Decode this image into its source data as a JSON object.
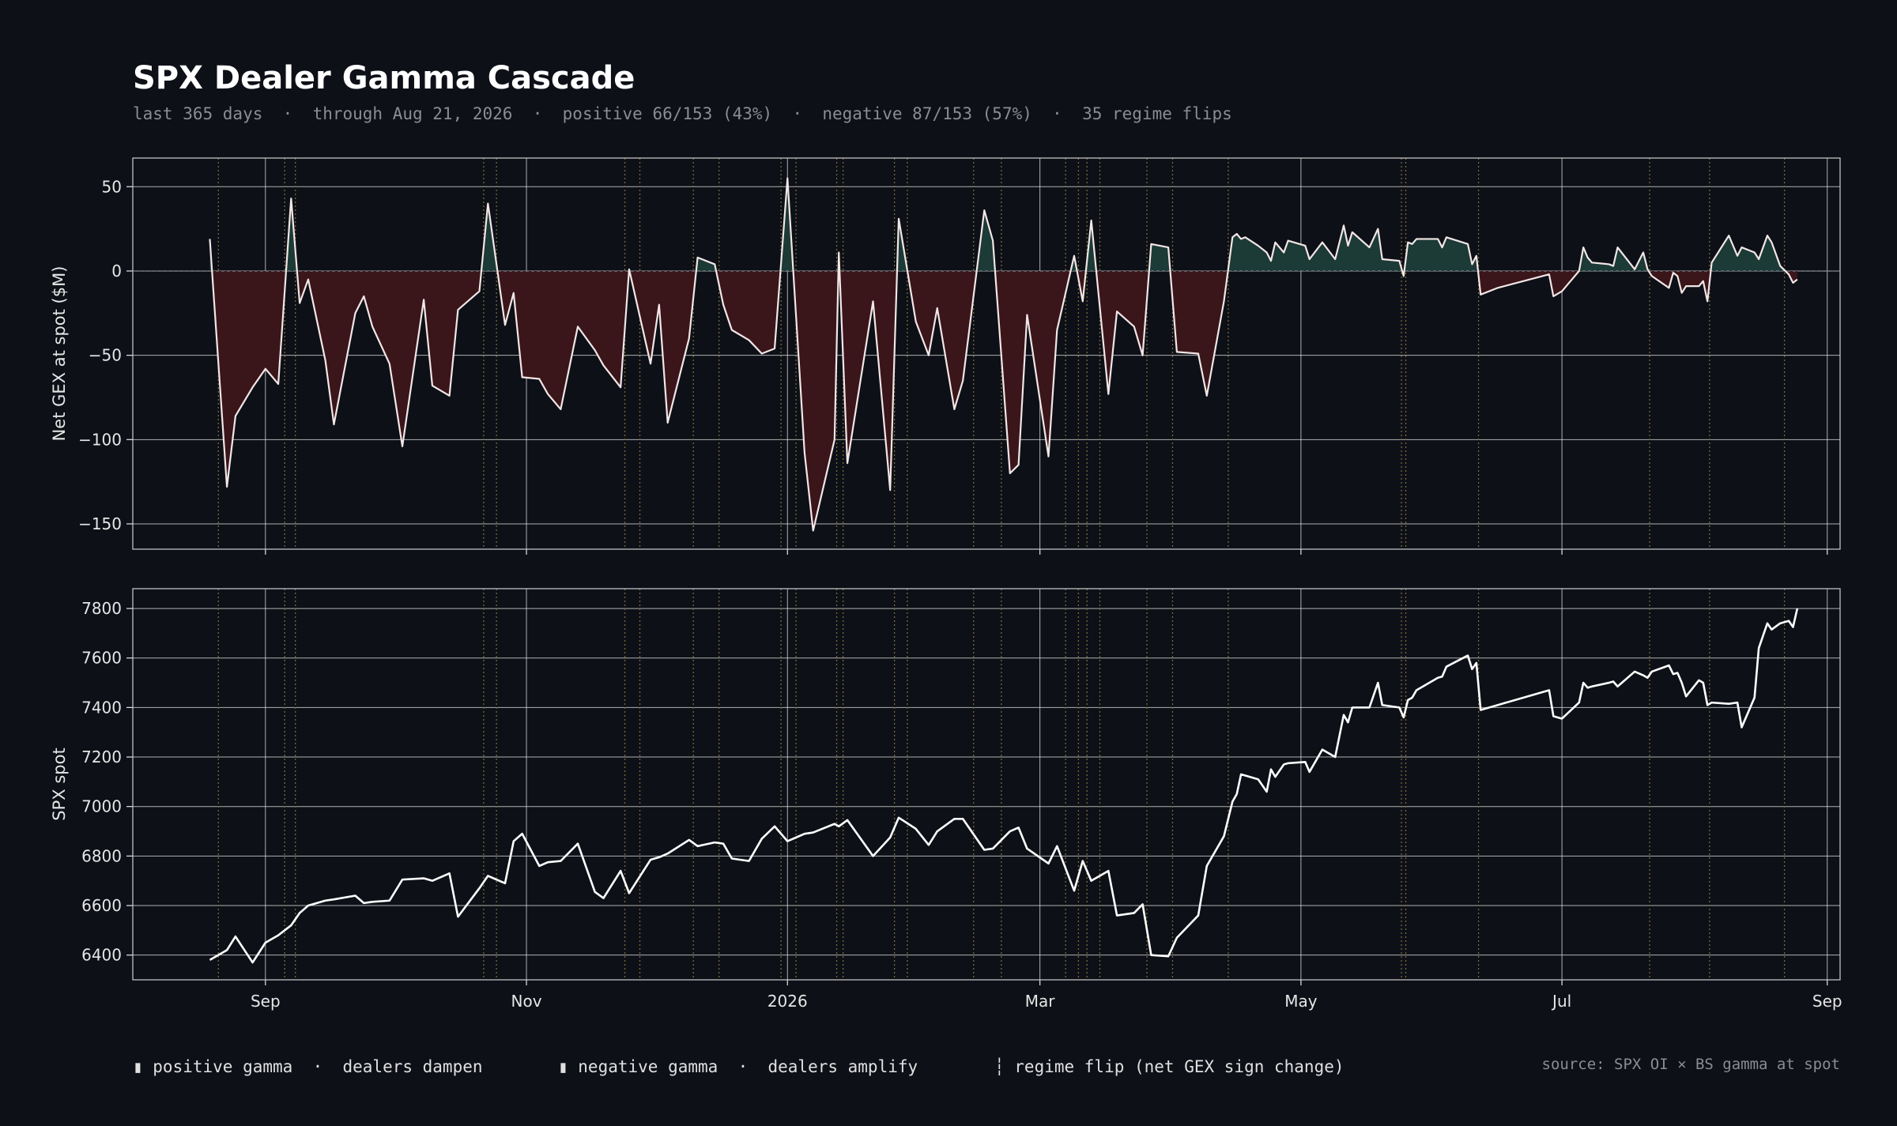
{
  "title": "SPX Dealer Gamma Cascade",
  "subtitle": "last 365 days  ·  through Aug 21, 2026  ·  positive 66/153 (43%)  ·  negative 87/153 (57%)  ·  35 regime flips",
  "legend": {
    "positive": "▮ positive gamma  ·  dealers dampen",
    "negative": "▮ negative gamma  ·  dealers amplify",
    "flip": "┆ regime flip (net GEX sign change)"
  },
  "source": "source: SPX OI × BS gamma at spot",
  "colors": {
    "background": "#0d1017",
    "line": "#ffffff",
    "positive_fill": "#1c3a36",
    "negative_fill": "#3a1519",
    "flip_line": "#7a6a35",
    "grid": "#e6e6e6"
  },
  "chart_data": [
    {
      "type": "area",
      "ylabel": "Net GEX at spot ($M)",
      "ylim": [
        -165,
        67
      ],
      "yticks": [
        50,
        0,
        -50,
        -100,
        -150
      ],
      "ytick_labels": [
        "50",
        "0",
        "−50",
        "−100",
        "−150"
      ],
      "x_ticks": [
        {
          "date": "2025-09-01",
          "label": "Sep"
        },
        {
          "date": "2025-11-01",
          "label": "Nov"
        },
        {
          "date": "2026-01-01",
          "label": "2026"
        },
        {
          "date": "2026-03-01",
          "label": "Mar"
        },
        {
          "date": "2026-05-01",
          "label": "May"
        },
        {
          "date": "2026-07-01",
          "label": "Jul"
        },
        {
          "date": "2026-09-01",
          "label": "Sep"
        }
      ],
      "xlim": [
        "2025-08-01",
        "2026-09-04"
      ],
      "grid": true,
      "points": [
        [
          "2025-08-19",
          19
        ],
        [
          "2025-08-23",
          -128
        ],
        [
          "2025-08-25",
          -86
        ],
        [
          "2025-08-29",
          -69
        ],
        [
          "2025-09-01",
          -58
        ],
        [
          "2025-09-04",
          -67
        ],
        [
          "2025-09-07",
          43
        ],
        [
          "2025-09-09",
          -19
        ],
        [
          "2025-09-11",
          -5
        ],
        [
          "2025-09-15",
          -53
        ],
        [
          "2025-09-17",
          -91
        ],
        [
          "2025-09-22",
          -25
        ],
        [
          "2025-09-24",
          -15
        ],
        [
          "2025-09-26",
          -33
        ],
        [
          "2025-09-30",
          -55
        ],
        [
          "2025-10-03",
          -104
        ],
        [
          "2025-10-08",
          -17
        ],
        [
          "2025-10-10",
          -68
        ],
        [
          "2025-10-14",
          -74
        ],
        [
          "2025-10-16",
          -23
        ],
        [
          "2025-10-21",
          -12
        ],
        [
          "2025-10-23",
          40
        ],
        [
          "2025-10-27",
          -32
        ],
        [
          "2025-10-29",
          -13
        ],
        [
          "2025-10-31",
          -63
        ],
        [
          "2025-11-04",
          -64
        ],
        [
          "2025-11-06",
          -73
        ],
        [
          "2025-11-09",
          -82
        ],
        [
          "2025-11-13",
          -33
        ],
        [
          "2025-11-17",
          -47
        ],
        [
          "2025-11-19",
          -56
        ],
        [
          "2025-11-23",
          -69
        ],
        [
          "2025-11-25",
          1
        ],
        [
          "2025-11-30",
          -55
        ],
        [
          "2025-12-02",
          -20
        ],
        [
          "2025-12-04",
          -90
        ],
        [
          "2025-12-09",
          -40
        ],
        [
          "2025-12-11",
          8
        ],
        [
          "2025-12-15",
          4
        ],
        [
          "2025-12-17",
          -20
        ],
        [
          "2025-12-19",
          -35
        ],
        [
          "2025-12-23",
          -41
        ],
        [
          "2025-12-26",
          -49
        ],
        [
          "2025-12-29",
          -46
        ],
        [
          "2026-01-01",
          55
        ],
        [
          "2026-01-05",
          -108
        ],
        [
          "2026-01-07",
          -154
        ],
        [
          "2026-01-12",
          -100
        ],
        [
          "2026-01-13",
          11
        ],
        [
          "2026-01-15",
          -114
        ],
        [
          "2026-01-21",
          -18
        ],
        [
          "2026-01-25",
          -130
        ],
        [
          "2026-01-27",
          31
        ],
        [
          "2026-01-31",
          -30
        ],
        [
          "2026-02-03",
          -50
        ],
        [
          "2026-02-05",
          -22
        ],
        [
          "2026-02-09",
          -82
        ],
        [
          "2026-02-11",
          -65
        ],
        [
          "2026-02-16",
          36
        ],
        [
          "2026-02-18",
          18
        ],
        [
          "2026-02-22",
          -120
        ],
        [
          "2026-02-24",
          -115
        ],
        [
          "2026-02-26",
          -26
        ],
        [
          "2026-03-03",
          -110
        ],
        [
          "2026-03-05",
          -35
        ],
        [
          "2026-03-09",
          9
        ],
        [
          "2026-03-11",
          -18
        ],
        [
          "2026-03-13",
          30
        ],
        [
          "2026-03-17",
          -73
        ],
        [
          "2026-03-19",
          -24
        ],
        [
          "2026-03-23",
          -33
        ],
        [
          "2026-03-25",
          -50
        ],
        [
          "2026-03-27",
          16
        ],
        [
          "2026-03-31",
          14
        ],
        [
          "2026-04-02",
          -48
        ],
        [
          "2026-04-07",
          -49
        ],
        [
          "2026-04-09",
          -74
        ],
        [
          "2026-04-13",
          -18
        ],
        [
          "2026-04-15",
          20
        ],
        [
          "2026-04-16",
          22
        ],
        [
          "2026-04-17",
          19
        ],
        [
          "2026-04-18",
          20
        ],
        [
          "2026-04-21",
          15
        ],
        [
          "2026-04-23",
          11
        ],
        [
          "2026-04-24",
          6
        ],
        [
          "2026-04-25",
          17
        ],
        [
          "2026-04-27",
          11
        ],
        [
          "2026-04-28",
          18
        ],
        [
          "2026-05-02",
          15
        ],
        [
          "2026-05-03",
          7
        ],
        [
          "2026-05-06",
          17
        ],
        [
          "2026-05-09",
          7
        ],
        [
          "2026-05-11",
          27
        ],
        [
          "2026-05-12",
          15
        ],
        [
          "2026-05-13",
          23
        ],
        [
          "2026-05-17",
          14
        ],
        [
          "2026-05-19",
          25
        ],
        [
          "2026-05-20",
          7
        ],
        [
          "2026-05-24",
          6
        ],
        [
          "2026-05-25",
          -3
        ],
        [
          "2026-05-26",
          17
        ],
        [
          "2026-05-27",
          16
        ],
        [
          "2026-05-28",
          19
        ],
        [
          "2026-06-02",
          19
        ],
        [
          "2026-06-03",
          14
        ],
        [
          "2026-06-04",
          20
        ],
        [
          "2026-06-09",
          16
        ],
        [
          "2026-06-10",
          4
        ],
        [
          "2026-06-11",
          9
        ],
        [
          "2026-06-12",
          -14
        ],
        [
          "2026-06-16",
          -10
        ],
        [
          "2026-06-28",
          -2
        ],
        [
          "2026-06-29",
          -15
        ],
        [
          "2026-07-01",
          -12
        ],
        [
          "2026-07-05",
          0
        ],
        [
          "2026-07-06",
          14
        ],
        [
          "2026-07-07",
          8
        ],
        [
          "2026-07-08",
          5
        ],
        [
          "2026-07-12",
          4
        ],
        [
          "2026-07-13",
          3
        ],
        [
          "2026-07-14",
          14
        ],
        [
          "2026-07-18",
          1
        ],
        [
          "2026-07-20",
          11
        ],
        [
          "2026-07-21",
          1
        ],
        [
          "2026-07-22",
          -3
        ],
        [
          "2026-07-26",
          -10
        ],
        [
          "2026-07-27",
          -1
        ],
        [
          "2026-07-28",
          -3
        ],
        [
          "2026-07-29",
          -13
        ],
        [
          "2026-07-30",
          -9
        ],
        [
          "2026-08-02",
          -9
        ],
        [
          "2026-08-03",
          -6
        ],
        [
          "2026-08-04",
          -18
        ],
        [
          "2026-08-05",
          5
        ],
        [
          "2026-08-09",
          21
        ],
        [
          "2026-08-11",
          9
        ],
        [
          "2026-08-12",
          14
        ],
        [
          "2026-08-15",
          11
        ],
        [
          "2026-08-16",
          7
        ],
        [
          "2026-08-18",
          21
        ],
        [
          "2026-08-19",
          17
        ],
        [
          "2026-08-21",
          3
        ],
        [
          "2026-08-23",
          -2
        ],
        [
          "2026-08-24",
          -7
        ],
        [
          "2026-08-25",
          -5
        ]
      ]
    },
    {
      "type": "line",
      "ylabel": "SPX spot",
      "ylim": [
        6300,
        7880
      ],
      "yticks": [
        7800,
        7600,
        7400,
        7200,
        7000,
        6800,
        6600,
        6400
      ],
      "ytick_labels": [
        "7800",
        "7600",
        "7400",
        "7200",
        "7000",
        "6800",
        "6600",
        "6400"
      ],
      "grid": true,
      "points": [
        [
          "2025-08-19",
          6380
        ],
        [
          "2025-08-23",
          6420
        ],
        [
          "2025-08-25",
          6475
        ],
        [
          "2025-08-29",
          6370
        ],
        [
          "2025-09-01",
          6450
        ],
        [
          "2025-09-04",
          6480
        ],
        [
          "2025-09-07",
          6520
        ],
        [
          "2025-09-09",
          6570
        ],
        [
          "2025-09-11",
          6600
        ],
        [
          "2025-09-15",
          6620
        ],
        [
          "2025-09-17",
          6625
        ],
        [
          "2025-09-22",
          6640
        ],
        [
          "2025-09-24",
          6610
        ],
        [
          "2025-09-26",
          6615
        ],
        [
          "2025-09-30",
          6620
        ],
        [
          "2025-10-03",
          6705
        ],
        [
          "2025-10-08",
          6710
        ],
        [
          "2025-10-10",
          6700
        ],
        [
          "2025-10-14",
          6730
        ],
        [
          "2025-10-16",
          6555
        ],
        [
          "2025-10-21",
          6670
        ],
        [
          "2025-10-23",
          6720
        ],
        [
          "2025-10-27",
          6690
        ],
        [
          "2025-10-29",
          6860
        ],
        [
          "2025-10-31",
          6890
        ],
        [
          "2025-11-04",
          6760
        ],
        [
          "2025-11-06",
          6775
        ],
        [
          "2025-11-09",
          6780
        ],
        [
          "2025-11-13",
          6850
        ],
        [
          "2025-11-17",
          6655
        ],
        [
          "2025-11-19",
          6630
        ],
        [
          "2025-11-23",
          6740
        ],
        [
          "2025-11-25",
          6650
        ],
        [
          "2025-11-30",
          6785
        ],
        [
          "2025-12-02",
          6795
        ],
        [
          "2025-12-04",
          6810
        ],
        [
          "2025-12-09",
          6865
        ],
        [
          "2025-12-11",
          6840
        ],
        [
          "2025-12-15",
          6855
        ],
        [
          "2025-12-17",
          6850
        ],
        [
          "2025-12-19",
          6790
        ],
        [
          "2025-12-23",
          6780
        ],
        [
          "2025-12-26",
          6870
        ],
        [
          "2025-12-29",
          6920
        ],
        [
          "2026-01-01",
          6860
        ],
        [
          "2026-01-05",
          6890
        ],
        [
          "2026-01-07",
          6895
        ],
        [
          "2026-01-12",
          6930
        ],
        [
          "2026-01-13",
          6920
        ],
        [
          "2026-01-15",
          6945
        ],
        [
          "2026-01-21",
          6800
        ],
        [
          "2026-01-25",
          6875
        ],
        [
          "2026-01-27",
          6955
        ],
        [
          "2026-01-31",
          6910
        ],
        [
          "2026-02-03",
          6845
        ],
        [
          "2026-02-05",
          6900
        ],
        [
          "2026-02-09",
          6950
        ],
        [
          "2026-02-11",
          6950
        ],
        [
          "2026-02-16",
          6825
        ],
        [
          "2026-02-18",
          6830
        ],
        [
          "2026-02-22",
          6900
        ],
        [
          "2026-02-24",
          6915
        ],
        [
          "2026-02-26",
          6830
        ],
        [
          "2026-03-03",
          6770
        ],
        [
          "2026-03-05",
          6840
        ],
        [
          "2026-03-09",
          6660
        ],
        [
          "2026-03-11",
          6780
        ],
        [
          "2026-03-13",
          6700
        ],
        [
          "2026-03-17",
          6740
        ],
        [
          "2026-03-19",
          6560
        ],
        [
          "2026-03-23",
          6570
        ],
        [
          "2026-03-25",
          6605
        ],
        [
          "2026-03-27",
          6400
        ],
        [
          "2026-03-31",
          6395
        ],
        [
          "2026-04-02",
          6470
        ],
        [
          "2026-04-07",
          6560
        ],
        [
          "2026-04-09",
          6760
        ],
        [
          "2026-04-13",
          6880
        ],
        [
          "2026-04-15",
          7020
        ],
        [
          "2026-04-16",
          7050
        ],
        [
          "2026-04-17",
          7130
        ],
        [
          "2026-04-18",
          7125
        ],
        [
          "2026-04-21",
          7110
        ],
        [
          "2026-04-23",
          7060
        ],
        [
          "2026-04-24",
          7150
        ],
        [
          "2026-04-25",
          7120
        ],
        [
          "2026-04-27",
          7170
        ],
        [
          "2026-04-28",
          7175
        ],
        [
          "2026-05-02",
          7180
        ],
        [
          "2026-05-03",
          7140
        ],
        [
          "2026-05-06",
          7230
        ],
        [
          "2026-05-09",
          7200
        ],
        [
          "2026-05-11",
          7370
        ],
        [
          "2026-05-12",
          7340
        ],
        [
          "2026-05-13",
          7400
        ],
        [
          "2026-05-17",
          7400
        ],
        [
          "2026-05-19",
          7500
        ],
        [
          "2026-05-20",
          7410
        ],
        [
          "2026-05-24",
          7400
        ],
        [
          "2026-05-25",
          7360
        ],
        [
          "2026-05-26",
          7430
        ],
        [
          "2026-05-27",
          7440
        ],
        [
          "2026-05-28",
          7470
        ],
        [
          "2026-06-02",
          7520
        ],
        [
          "2026-06-03",
          7525
        ],
        [
          "2026-06-04",
          7565
        ],
        [
          "2026-06-09",
          7610
        ],
        [
          "2026-06-10",
          7555
        ],
        [
          "2026-06-11",
          7580
        ],
        [
          "2026-06-12",
          7390
        ],
        [
          "2026-06-16",
          7410
        ],
        [
          "2026-06-28",
          7470
        ],
        [
          "2026-06-29",
          7365
        ],
        [
          "2026-07-01",
          7355
        ],
        [
          "2026-07-05",
          7420
        ],
        [
          "2026-07-06",
          7500
        ],
        [
          "2026-07-07",
          7480
        ],
        [
          "2026-07-08",
          7485
        ],
        [
          "2026-07-12",
          7500
        ],
        [
          "2026-07-13",
          7505
        ],
        [
          "2026-07-14",
          7485
        ],
        [
          "2026-07-18",
          7545
        ],
        [
          "2026-07-20",
          7530
        ],
        [
          "2026-07-21",
          7520
        ],
        [
          "2026-07-22",
          7545
        ],
        [
          "2026-07-26",
          7570
        ],
        [
          "2026-07-27",
          7535
        ],
        [
          "2026-07-28",
          7540
        ],
        [
          "2026-07-29",
          7500
        ],
        [
          "2026-07-30",
          7445
        ],
        [
          "2026-08-02",
          7510
        ],
        [
          "2026-08-03",
          7500
        ],
        [
          "2026-08-04",
          7410
        ],
        [
          "2026-08-05",
          7420
        ],
        [
          "2026-08-09",
          7415
        ],
        [
          "2026-08-11",
          7420
        ],
        [
          "2026-08-12",
          7320
        ],
        [
          "2026-08-15",
          7440
        ],
        [
          "2026-08-16",
          7640
        ],
        [
          "2026-08-18",
          7740
        ],
        [
          "2026-08-19",
          7715
        ],
        [
          "2026-08-21",
          7740
        ],
        [
          "2026-08-23",
          7750
        ],
        [
          "2026-08-24",
          7725
        ],
        [
          "2026-08-25",
          7800
        ]
      ]
    }
  ]
}
